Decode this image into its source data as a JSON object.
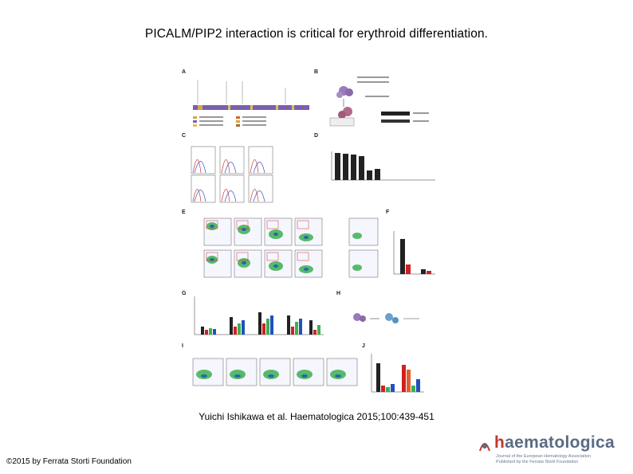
{
  "slide": {
    "title": "PICALM/PIP2 interaction is critical for erythroid differentiation.",
    "citation": "Yuichi Ishikawa et al. Haematologica 2015;100:439-451",
    "copyright": "©2015 by Ferrata Storti Foundation"
  },
  "logo": {
    "wordmark_h": "h",
    "wordmark_rest": "aematologica",
    "tagline1": "Journal of the European Hematology Association",
    "tagline2": "Published by the Ferrata Storti Foundation"
  },
  "figure": {
    "panels": [
      "A",
      "B",
      "C",
      "D",
      "E",
      "F",
      "G",
      "H",
      "I",
      "J"
    ]
  },
  "colors": {
    "accent": "#c0392b",
    "logo_text": "#5a6b84"
  }
}
